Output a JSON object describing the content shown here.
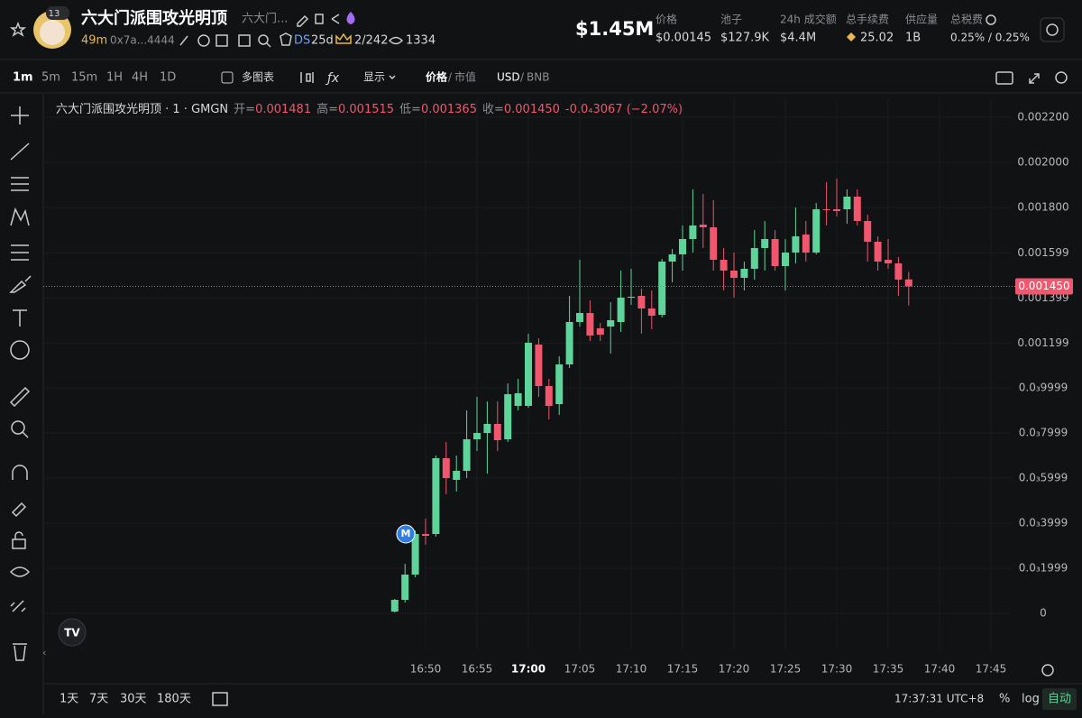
{
  "header": {
    "title": "六大门派围攻光明顶",
    "subtitle": "六大门...",
    "badge": "13",
    "age": "49m",
    "address": "0x7a...4444",
    "ds": "DS",
    "ds_age": "25d",
    "holders": "2/242",
    "views": "1334",
    "market_cap": "$1.45M",
    "stats": [
      {
        "label": "价格",
        "value": "$0.00145"
      },
      {
        "label": "池子",
        "value": "$127.9K"
      },
      {
        "label": "24h 成交额",
        "value": "$4.4M"
      },
      {
        "label": "总手续费",
        "value": "25.02"
      },
      {
        "label": "供应量",
        "value": "1B"
      },
      {
        "label": "总税费",
        "value": "0.25% / 0.25%"
      }
    ]
  },
  "toolbar": {
    "intervals": [
      "1m",
      "5m",
      "15m",
      "1H",
      "4H",
      "1D"
    ],
    "multi_chart": "多图表",
    "display": "显示",
    "price": "价格",
    "market_cap": "市值",
    "usd": "USD",
    "bnb": "BNB"
  },
  "legend": {
    "name": "六大门派围攻光明顶 · 1 · GMGN",
    "open_label": "开=",
    "open": "0.001481",
    "high_label": "高=",
    "high": "0.001515",
    "low_label": "低=",
    "low": "0.001365",
    "close_label": "收=",
    "close": "0.001450",
    "change": "-0.0₄3067 (−2.07%)"
  },
  "chart": {
    "type": "candlestick",
    "marker": "M",
    "categories": [
      null,
      null,
      null,
      "16:50",
      null,
      null,
      null,
      null,
      "16:55",
      null,
      null,
      null,
      null,
      "17:00",
      null,
      null,
      null,
      null,
      "17:05",
      null,
      null,
      null,
      null,
      "17:10",
      null,
      null,
      null,
      null,
      "17:15",
      null,
      null,
      null,
      null,
      "17:20",
      null,
      null,
      null,
      null,
      "17:25",
      null,
      null,
      null,
      null,
      "17:30",
      null,
      null,
      null,
      null,
      "17:35",
      null,
      null,
      null,
      null,
      "17:40",
      null,
      null,
      null,
      null,
      "17:45"
    ],
    "open": [
      8e-06,
      6e-05,
      0.000172,
      0.000352,
      0.000352,
      0.000688,
      0.000592,
      0.000632,
      0.000772,
      0.0008,
      0.00084,
      0.000772,
      0.00092,
      0.00092,
      0.001192,
      0.001008,
      0.000928,
      0.001104,
      0.001292,
      0.001332,
      0.001264,
      0.001272,
      0.001292,
      0.0014,
      0.001408,
      0.001352,
      0.001324,
      0.00156,
      0.001592,
      0.00166,
      0.001724,
      0.001712,
      0.001568,
      0.00152,
      0.001488,
      0.001528,
      0.00162,
      0.00166,
      0.00154,
      0.0016,
      0.00168,
      0.0016,
      0.001792,
      0.001792,
      0.001792,
      0.001848,
      0.00174,
      0.001648,
      0.001568,
      0.001552,
      0.001481,
      null,
      null,
      null,
      null,
      null,
      null,
      null,
      null
    ],
    "high": [
      6.4e-05,
      0.00022,
      0.000368,
      0.00042,
      0.0007,
      0.00076,
      0.0007,
      0.0009,
      0.00096,
      0.00094,
      0.00094,
      0.00102,
      0.00104,
      0.00124,
      0.00122,
      0.00104,
      0.00114,
      0.001408,
      0.001568,
      0.001388,
      0.001288,
      0.00138,
      0.00152,
      0.001528,
      0.00144,
      0.001432,
      0.001572,
      0.001616,
      0.00172,
      0.00188,
      0.00186,
      0.001832,
      0.00162,
      0.0016,
      0.00156,
      0.0017,
      0.00174,
      0.0017,
      0.00166,
      0.0018,
      0.00174,
      0.00182,
      0.001912,
      0.001928,
      0.00188,
      0.00188,
      0.001768,
      0.001672,
      0.00166,
      0.00158,
      0.001515,
      null,
      null,
      null,
      null,
      null,
      null,
      null,
      null
    ],
    "low": [
      4e-06,
      4.8e-05,
      0.00016,
      0.000304,
      0.00034,
      0.000528,
      0.00054,
      0.0006,
      0.00072,
      0.00062,
      0.00072,
      0.00076,
      0.0009,
      0.000912,
      0.00096,
      0.00086,
      0.00088,
      0.001088,
      0.001272,
      0.001208,
      0.001208,
      0.001152,
      0.001248,
      0.001368,
      0.00124,
      0.00126,
      0.001312,
      0.001468,
      0.00152,
      0.0016,
      0.00162,
      0.00152,
      0.001432,
      0.0014,
      0.001432,
      0.00148,
      0.00152,
      0.00152,
      0.001432,
      0.001552,
      0.00156,
      0.001592,
      0.00172,
      0.00176,
      0.001728,
      0.00172,
      0.00156,
      0.00152,
      0.001528,
      0.001408,
      0.001365,
      null,
      null,
      null,
      null,
      null,
      null,
      null,
      null
    ],
    "close": [
      6e-05,
      0.000172,
      0.000352,
      0.000344,
      0.000688,
      0.0006,
      0.000632,
      0.000772,
      0.0008,
      0.00084,
      0.000768,
      0.000972,
      0.000976,
      0.0012,
      0.001008,
      0.00092,
      0.001104,
      0.001292,
      0.001332,
      0.001232,
      0.001236,
      0.0013,
      0.0014,
      0.001404,
      0.001352,
      0.00132,
      0.00156,
      0.001592,
      0.00166,
      0.00172,
      0.001712,
      0.001568,
      0.00152,
      0.001488,
      0.001528,
      0.00162,
      0.00166,
      0.00154,
      0.0016,
      0.001672,
      0.0016,
      0.001792,
      0.001788,
      0.001784,
      0.001848,
      0.00174,
      0.001648,
      0.00156,
      0.001552,
      0.00148,
      0.00145,
      null,
      null,
      null,
      null,
      null,
      null,
      null,
      null
    ],
    "up_color": "#5fd49a",
    "down_color": "#f0566e",
    "ylim": [
      -0.00016,
      0.00228
    ],
    "yticks": [
      0,
      {
        "value": 0.0001999,
        "label": "0.0₃1999"
      },
      {
        "value": 0.0003999,
        "label": "0.0₃3999"
      },
      {
        "value": 0.0005999,
        "label": "0.0₃5999"
      },
      {
        "value": 0.0007999,
        "label": "0.0₃7999"
      },
      {
        "value": 0.0009999,
        "label": "0.0₃9999"
      },
      0.001199,
      0.001399,
      0.001599,
      {
        "value": 0.0018,
        "label": "0.001800"
      },
      {
        "value": 0.002,
        "label": "0.002000"
      },
      {
        "value": 0.0022,
        "label": "0.002200"
      }
    ],
    "grid": true,
    "last_price": 0.00145,
    "last_price_label": "0.001450"
  },
  "footer": {
    "ranges": [
      "1天",
      "7天",
      "30天",
      "180天"
    ],
    "time": "17:37:31 UTC+8",
    "percent": "%",
    "log": "log",
    "auto": "自动"
  }
}
